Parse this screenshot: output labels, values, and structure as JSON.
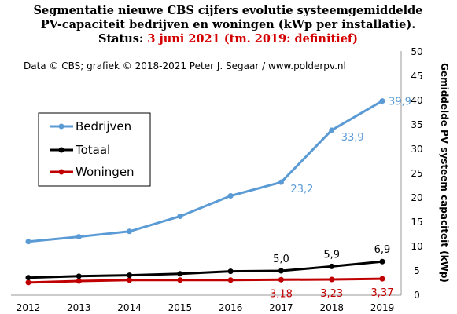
{
  "title": {
    "line1": "Segmentatie nieuwe CBS cijfers evolutie systeemgemiddelde",
    "line2": "PV-capaciteit bedrijven en woningen (kWp per installatie).",
    "line3_prefix": "Status: ",
    "line3_status": "3 juni 2021 (tm. 2019: definitief)"
  },
  "credit": "Data © CBS; grafiek © 2018-2021 Peter J. Segaar / www.polderpv.nl",
  "colors": {
    "bedrijven": "#5b9bd5",
    "totaal": "#000000",
    "woningen": "#c00000",
    "status_red": "#d40000"
  },
  "chart_data": {
    "type": "line",
    "title": "Segmentatie nieuwe CBS cijfers evolutie systeemgemiddelde PV-capaciteit bedrijven en woningen (kWp per installatie).",
    "x": [
      2012,
      2013,
      2014,
      2015,
      2016,
      2017,
      2018,
      2019
    ],
    "xlabel": "",
    "ylabel": "Gemiddelde PV systeem capaciteit (kWp)",
    "ylim": [
      0,
      50
    ],
    "yticks": [
      0,
      5,
      10,
      15,
      20,
      25,
      30,
      35,
      40,
      45,
      50
    ],
    "y_axis_position": "right",
    "grid": false,
    "legend_position": "left",
    "series": [
      {
        "name": "Bedrijven",
        "color": "#5b9bd5",
        "values": [
          11.0,
          12.0,
          13.1,
          16.2,
          20.4,
          23.2,
          33.9,
          39.9
        ],
        "labels": {
          "2017": "23,2",
          "2018": "33,9",
          "2019": "39,9"
        }
      },
      {
        "name": "Totaal",
        "color": "#000000",
        "values": [
          3.6,
          3.9,
          4.1,
          4.4,
          4.9,
          5.0,
          5.9,
          6.9
        ],
        "labels": {
          "2017": "5,0",
          "2018": "5,9",
          "2019": "6,9"
        }
      },
      {
        "name": "Woningen",
        "color": "#c00000",
        "values": [
          2.6,
          2.9,
          3.1,
          3.1,
          3.1,
          3.18,
          3.23,
          3.37
        ],
        "labels": {
          "2017": "3,18",
          "2018": "3,23",
          "2019": "3,37"
        }
      }
    ]
  }
}
